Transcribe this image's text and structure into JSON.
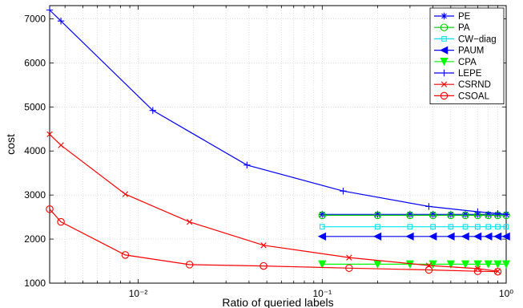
{
  "chart_data": {
    "type": "line",
    "xlabel": "Ratio of queried labels",
    "ylabel": "cost",
    "xscale": "log",
    "xlim": [
      0.0033,
      1.0
    ],
    "ylim": [
      1000,
      7300
    ],
    "grid": true,
    "legend_position": "top-right",
    "x_ticks": [
      {
        "value": 0.01,
        "label": "10⁻²"
      },
      {
        "value": 0.1,
        "label": "10⁻¹"
      },
      {
        "value": 1.0,
        "label": "10⁰"
      }
    ],
    "y_ticks": [
      1000,
      2000,
      3000,
      4000,
      5000,
      6000,
      7000
    ],
    "series": [
      {
        "name": "PE",
        "color": "#0000ff",
        "marker": "star",
        "x": [
          0.1,
          0.2,
          0.3,
          0.4,
          0.5,
          0.6,
          0.7,
          0.8,
          0.9,
          1.0
        ],
        "y": [
          2560,
          2560,
          2560,
          2560,
          2560,
          2560,
          2560,
          2560,
          2560,
          2560
        ]
      },
      {
        "name": "PA",
        "color": "#00cc00",
        "marker": "circle",
        "x": [
          0.1,
          0.2,
          0.3,
          0.4,
          0.5,
          0.6,
          0.7,
          0.8,
          0.9,
          1.0
        ],
        "y": [
          2540,
          2540,
          2540,
          2540,
          2540,
          2540,
          2540,
          2540,
          2540,
          2540
        ]
      },
      {
        "name": "CW−diag",
        "color": "#00e5ee",
        "marker": "square",
        "x": [
          0.1,
          0.2,
          0.3,
          0.4,
          0.5,
          0.6,
          0.7,
          0.8,
          0.9,
          1.0
        ],
        "y": [
          2280,
          2280,
          2280,
          2280,
          2280,
          2280,
          2280,
          2280,
          2280,
          2280
        ]
      },
      {
        "name": "PAUM",
        "color": "#0000ff",
        "marker": "triangle-left",
        "x": [
          0.1,
          0.2,
          0.3,
          0.4,
          0.5,
          0.6,
          0.7,
          0.8,
          0.9,
          1.0
        ],
        "y": [
          2060,
          2060,
          2060,
          2060,
          2060,
          2060,
          2060,
          2060,
          2060,
          2060
        ]
      },
      {
        "name": "CPA",
        "color": "#00ff00",
        "marker": "triangle-down",
        "x": [
          0.1,
          0.2,
          0.3,
          0.4,
          0.5,
          0.6,
          0.7,
          0.8,
          0.9,
          1.0
        ],
        "y": [
          1430,
          1430,
          1430,
          1430,
          1430,
          1430,
          1430,
          1430,
          1430,
          1430
        ]
      },
      {
        "name": "LEPE",
        "color": "#0000ff",
        "marker": "plus",
        "x": [
          0.0033,
          0.0038,
          0.012,
          0.039,
          0.13,
          0.38,
          0.7,
          0.9,
          1.0
        ],
        "y": [
          7200,
          6950,
          4920,
          3680,
          3090,
          2740,
          2620,
          2580,
          2560
        ]
      },
      {
        "name": "CSRND",
        "color": "#ff0000",
        "marker": "x",
        "x": [
          0.0033,
          0.0038,
          0.0085,
          0.019,
          0.048,
          0.14,
          0.38,
          0.7,
          0.9
        ],
        "y": [
          4380,
          4130,
          3020,
          2390,
          1860,
          1580,
          1400,
          1330,
          1270
        ]
      },
      {
        "name": "CSOAL",
        "color": "#ff0000",
        "marker": "circle",
        "x": [
          0.0033,
          0.0038,
          0.0085,
          0.019,
          0.048,
          0.14,
          0.38,
          0.7,
          0.9
        ],
        "y": [
          2680,
          2390,
          1640,
          1420,
          1390,
          1340,
          1300,
          1270,
          1260
        ]
      }
    ]
  }
}
